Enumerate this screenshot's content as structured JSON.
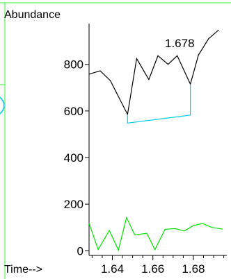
{
  "chart_data": {
    "type": "line",
    "ylabel": "Abundance",
    "xlabel": "Time-->",
    "annotation": "1.678",
    "xlim": [
      1.6285,
      1.6965
    ],
    "ylim": [
      -20,
      975
    ],
    "x_ticks": [
      1.64,
      1.66,
      1.68
    ],
    "x_tick_labels": [
      "1.64",
      "1.66",
      "1.68"
    ],
    "y_ticks": [
      0,
      200,
      400,
      600,
      800
    ],
    "y_tick_labels": [
      "0",
      "200",
      "400",
      "600",
      "800"
    ],
    "colors": {
      "main": "#000000",
      "baseline": "#00ccee",
      "secondary": "#00e000",
      "frame": "#33ee33"
    },
    "series": [
      {
        "x": [
          1.6285,
          1.634,
          1.639,
          1.6475,
          1.652,
          1.658,
          1.6625,
          1.6675,
          1.672,
          1.6785,
          1.6825,
          1.6875,
          1.6925
        ],
        "y": [
          758,
          772,
          730,
          585,
          825,
          735,
          837,
          800,
          837,
          715,
          840,
          910,
          948
        ]
      },
      {
        "x": [
          1.6475,
          1.6785
        ],
        "y": [
          548,
          582
        ]
      },
      {
        "x": [
          1.6285,
          1.633,
          1.6385,
          1.643,
          1.647,
          1.651,
          1.657,
          1.661,
          1.666,
          1.671,
          1.6755,
          1.68,
          1.6845,
          1.689,
          1.6945
        ],
        "y": [
          118,
          5,
          87,
          3,
          143,
          68,
          75,
          5,
          92,
          95,
          85,
          108,
          117,
          100,
          93
        ]
      }
    ]
  }
}
